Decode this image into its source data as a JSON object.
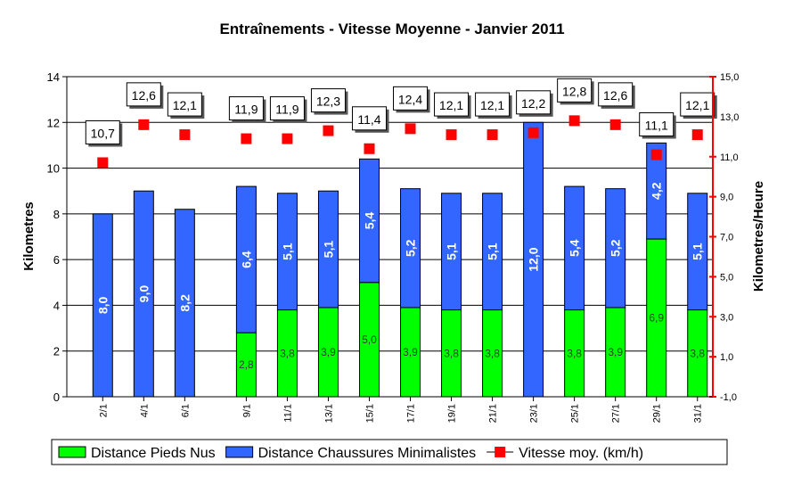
{
  "chart_data": {
    "type": "stacked-bar-line",
    "title": "Entraînements - Vitesse Moyenne - Janvier 2011",
    "y_label": "Kilometres",
    "y2_label": "Kilometres/Heure",
    "x": [
      2,
      4,
      6,
      9,
      11,
      13,
      15,
      17,
      19,
      21,
      23,
      25,
      27,
      29,
      31
    ],
    "xlim": [
      0.25,
      31.75
    ],
    "xticks": [
      {
        "value": 2,
        "label": "2/1"
      },
      {
        "value": 4,
        "label": "4/1"
      },
      {
        "value": 6,
        "label": "6/1"
      },
      {
        "value": 9,
        "label": "9/1"
      },
      {
        "value": 11,
        "label": "11/1"
      },
      {
        "value": 13,
        "label": "13/1"
      },
      {
        "value": 15,
        "label": "15/1"
      },
      {
        "value": 17,
        "label": "17/1"
      },
      {
        "value": 19,
        "label": "19/1"
      },
      {
        "value": 21,
        "label": "21/1"
      },
      {
        "value": 23,
        "label": "23/1"
      },
      {
        "value": 25,
        "label": "25/1"
      },
      {
        "value": 27,
        "label": "27/1"
      },
      {
        "value": 29,
        "label": "29/1"
      },
      {
        "value": 31,
        "label": "31/1"
      }
    ],
    "ylim": [
      0,
      14
    ],
    "yticks": [
      0,
      2,
      4,
      6,
      8,
      10,
      12,
      14
    ],
    "y2lim": [
      -1,
      15
    ],
    "y2ticks": [
      {
        "value": -1,
        "label": "-1,0"
      },
      {
        "value": 1,
        "label": "1,0"
      },
      {
        "value": 3,
        "label": "3,0"
      },
      {
        "value": 5,
        "label": "5,0"
      },
      {
        "value": 7,
        "label": "7,0"
      },
      {
        "value": 9,
        "label": "9,0"
      },
      {
        "value": 11,
        "label": "11,0"
      },
      {
        "value": 13,
        "label": "13,0"
      },
      {
        "value": 15,
        "label": "15,0"
      }
    ],
    "grid": true,
    "legend": "bottom",
    "series": [
      {
        "name": "Distance Pieds Nus",
        "color": "#00ff00",
        "kind": "bar",
        "values": [
          0,
          0,
          0,
          2.8,
          3.8,
          3.9,
          5.0,
          3.9,
          3.8,
          3.8,
          0,
          3.8,
          3.9,
          6.9,
          3.8
        ],
        "value_labels": [
          null,
          null,
          null,
          "2,8",
          "3,8",
          "3,9",
          "5,0",
          "3,9",
          "3,8",
          "3,8",
          null,
          "3,8",
          "3,9",
          "6,9",
          "3,8"
        ]
      },
      {
        "name": "Distance Chaussures Minimalistes",
        "color": "#3366ff",
        "kind": "bar",
        "values": [
          8.0,
          9.0,
          8.2,
          6.4,
          5.1,
          5.1,
          5.4,
          5.2,
          5.1,
          5.1,
          12.0,
          5.4,
          5.2,
          4.2,
          5.1
        ],
        "value_labels": [
          "8,0",
          "9,0",
          "8,2",
          "6,4",
          "5,1",
          "5,1",
          "5,4",
          "5,2",
          "5,1",
          "5,1",
          "12,0",
          "5,4",
          "5,2",
          "4,2",
          "5,1"
        ]
      },
      {
        "name": "Vitesse moy. (km/h)",
        "color": "#ff0000",
        "kind": "marker",
        "axis": "y2",
        "values": [
          10.7,
          12.6,
          12.1,
          11.9,
          11.9,
          12.3,
          11.4,
          12.4,
          12.1,
          12.1,
          12.2,
          12.8,
          12.6,
          11.1,
          12.1
        ],
        "value_labels": [
          "10,7",
          "12,6",
          "12,1",
          "11,9",
          "11,9",
          "12,3",
          "11,4",
          "12,4",
          "12,1",
          "12,1",
          "12,2",
          "12,8",
          "12,6",
          "11,1",
          "12,1"
        ]
      }
    ]
  }
}
